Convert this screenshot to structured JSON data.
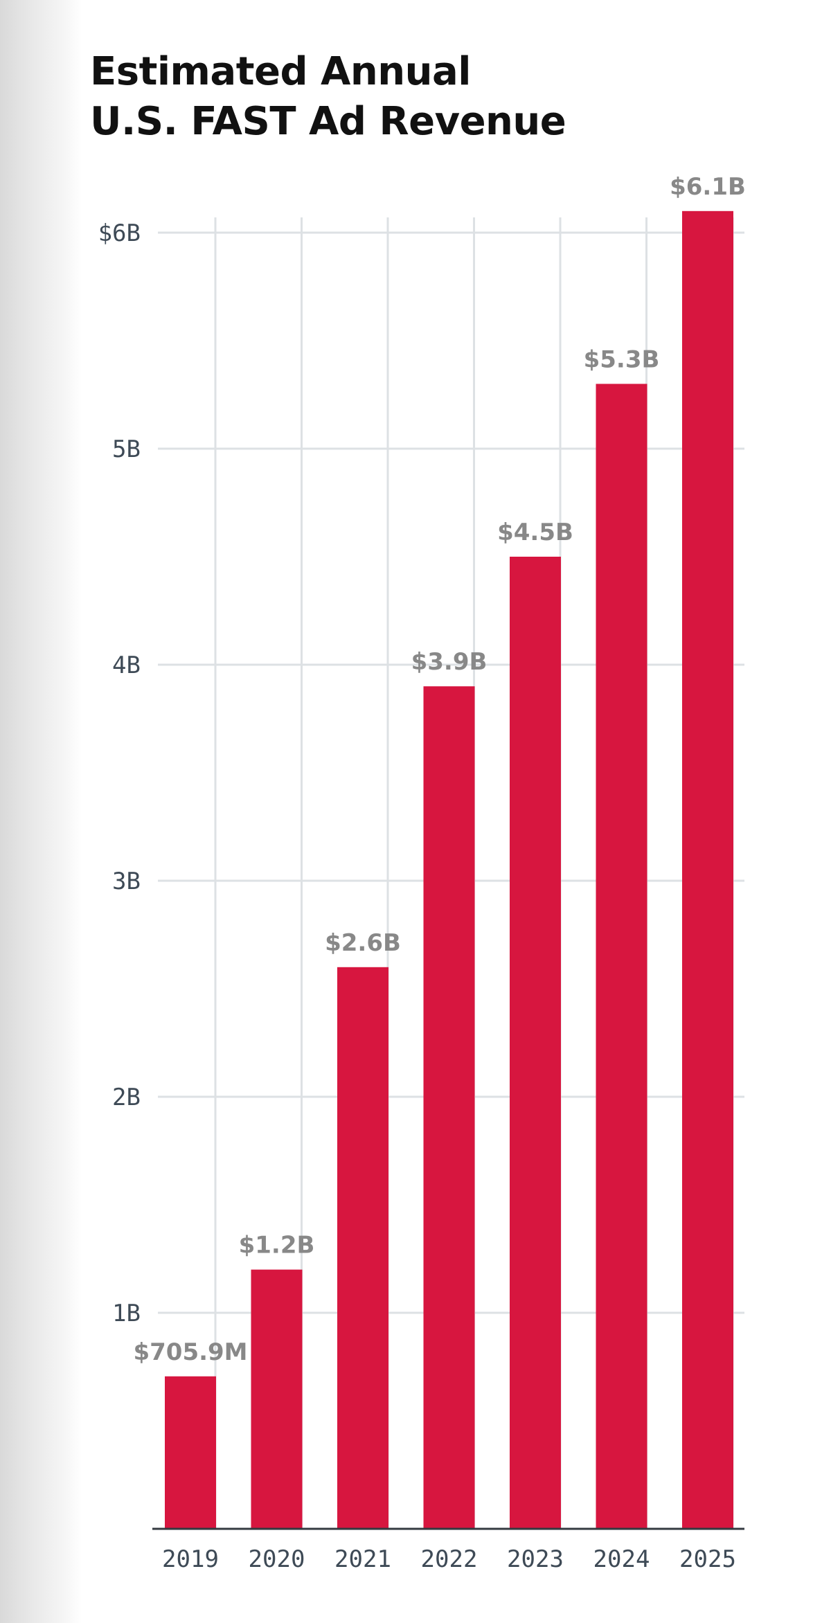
{
  "chart_data": {
    "type": "bar",
    "title_lines": [
      "Estimated Annual",
      "U.S. FAST Ad Revenue"
    ],
    "categories": [
      "2019",
      "2020",
      "2021",
      "2022",
      "2023",
      "2024",
      "2025"
    ],
    "values": [
      0.7059,
      1.2,
      2.6,
      3.9,
      4.5,
      5.3,
      6.1
    ],
    "value_labels": [
      "$705.9M",
      "$1.2B",
      "$2.6B",
      "$3.9B",
      "$4.5B",
      "$5.3B",
      "$6.1B"
    ],
    "y_ticks": [
      {
        "value": 1,
        "label": "1B"
      },
      {
        "value": 2,
        "label": "2B"
      },
      {
        "value": 3,
        "label": "3B"
      },
      {
        "value": 4,
        "label": "4B"
      },
      {
        "value": 5,
        "label": "5B"
      },
      {
        "value": 6,
        "label": "$6B"
      }
    ],
    "ylim": [
      0,
      6.1
    ],
    "grid": true,
    "legend": "none",
    "colors": {
      "bar": "#d7163f",
      "grid": "#dde1e4",
      "axis": "#333a40",
      "value_label": "#888888",
      "tick_label": "#3e4a56"
    }
  }
}
